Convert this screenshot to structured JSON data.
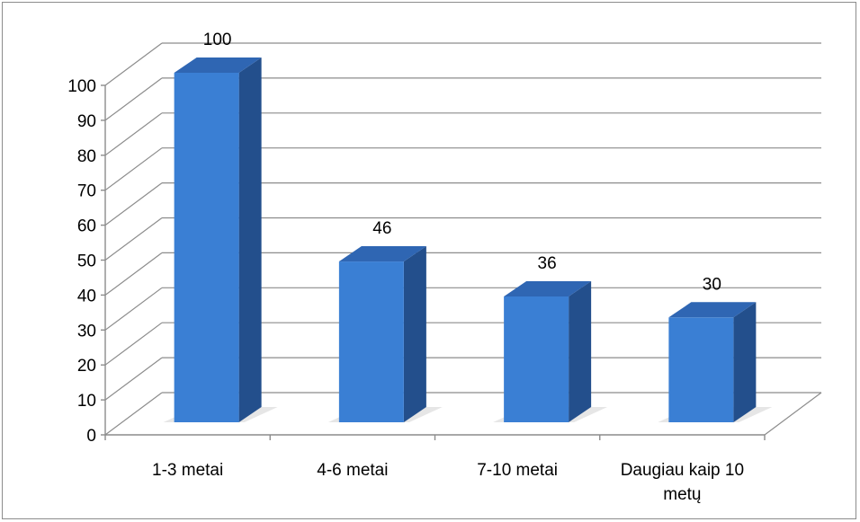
{
  "chart_data": {
    "type": "bar",
    "title": "",
    "xlabel": "",
    "ylabel": "",
    "ylim": [
      0,
      100
    ],
    "yticks": [
      0,
      10,
      20,
      30,
      40,
      50,
      60,
      70,
      80,
      90,
      100
    ],
    "grid": true,
    "legend": "none",
    "three_d": true,
    "categories": [
      "1-3 metai",
      "4-6 metai",
      "7-10 metai",
      "Daugiau kaip 10 metų"
    ],
    "values": [
      100,
      46,
      36,
      30
    ],
    "data_labels": [
      "100",
      "46",
      "36",
      "30"
    ],
    "colors": {
      "bar_front": "#3a7fd4",
      "bar_top": "#2f66b3",
      "bar_side": "#234f8c",
      "grid": "#8c8c8c",
      "axis": "#8c8c8c",
      "floor_shadow": "#e6e6e6"
    }
  }
}
